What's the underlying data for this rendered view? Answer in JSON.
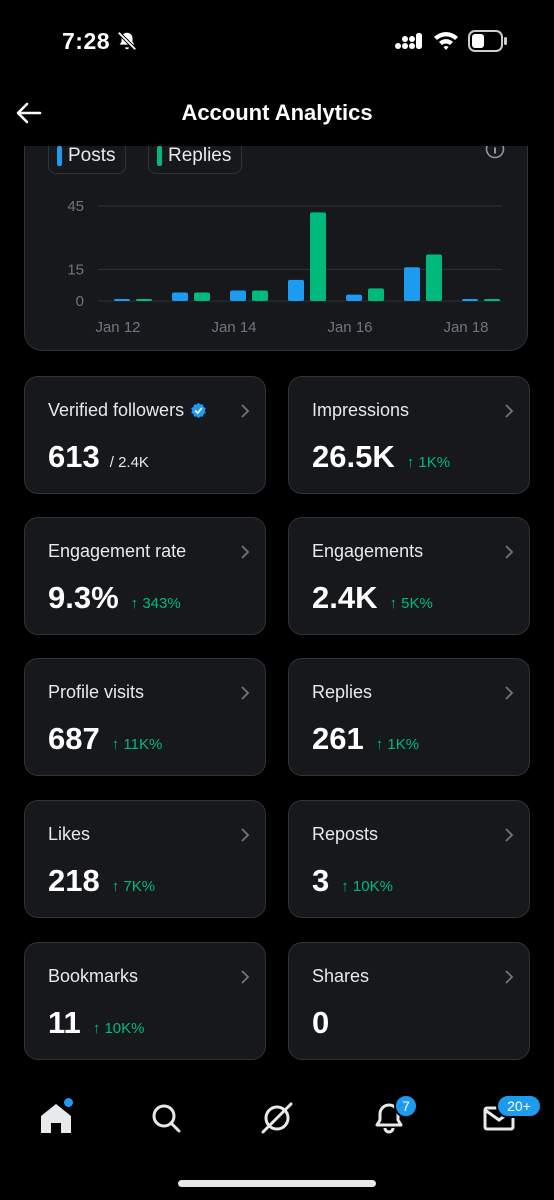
{
  "status_bar": {
    "time": "7:28"
  },
  "header": {
    "title": "Account Analytics"
  },
  "legend": {
    "posts": "Posts",
    "replies": "Replies"
  },
  "colors": {
    "posts": "#1d9bf0",
    "replies": "#00ba7c",
    "positive_change": "#00ba7c"
  },
  "chart_data": {
    "type": "bar",
    "categories": [
      "Jan 12",
      "Jan 13",
      "Jan 14",
      "Jan 15",
      "Jan 16",
      "Jan 17",
      "Jan 18"
    ],
    "x_tick_labels": [
      "Jan 12",
      "Jan 14",
      "Jan 16",
      "Jan 18"
    ],
    "y_ticks": [
      "0",
      "15",
      "45"
    ],
    "ylim": [
      0,
      45
    ],
    "grid": true,
    "series": [
      {
        "name": "Posts",
        "values": [
          0.5,
          4,
          5,
          10,
          3,
          16,
          0.5
        ]
      },
      {
        "name": "Replies",
        "values": [
          0,
          4,
          5,
          42,
          6,
          22,
          0.5
        ]
      }
    ]
  },
  "stats": [
    {
      "label": "Verified followers",
      "value": "613",
      "sub": "/ 2.4K",
      "change": ""
    },
    {
      "label": "Impressions",
      "value": "26.5K",
      "sub": "",
      "change": "↑ 1K%"
    },
    {
      "label": "Engagement rate",
      "value": "9.3%",
      "sub": "",
      "change": "↑ 343%"
    },
    {
      "label": "Engagements",
      "value": "2.4K",
      "sub": "",
      "change": "↑ 5K%"
    },
    {
      "label": "Profile visits",
      "value": "687",
      "sub": "",
      "change": "↑ 11K%"
    },
    {
      "label": "Replies",
      "value": "261",
      "sub": "",
      "change": "↑ 1K%"
    },
    {
      "label": "Likes",
      "value": "218",
      "sub": "",
      "change": "↑ 7K%"
    },
    {
      "label": "Reposts",
      "value": "3",
      "sub": "",
      "change": "↑ 10K%"
    },
    {
      "label": "Bookmarks",
      "value": "11",
      "sub": "",
      "change": "↑ 10K%"
    },
    {
      "label": "Shares",
      "value": "0",
      "sub": "",
      "change": ""
    }
  ],
  "nav": {
    "notifications_badge": "7",
    "messages_badge": "20+",
    "icons": [
      "home-icon",
      "search-icon",
      "grok-icon",
      "bell-icon",
      "mail-icon"
    ]
  }
}
